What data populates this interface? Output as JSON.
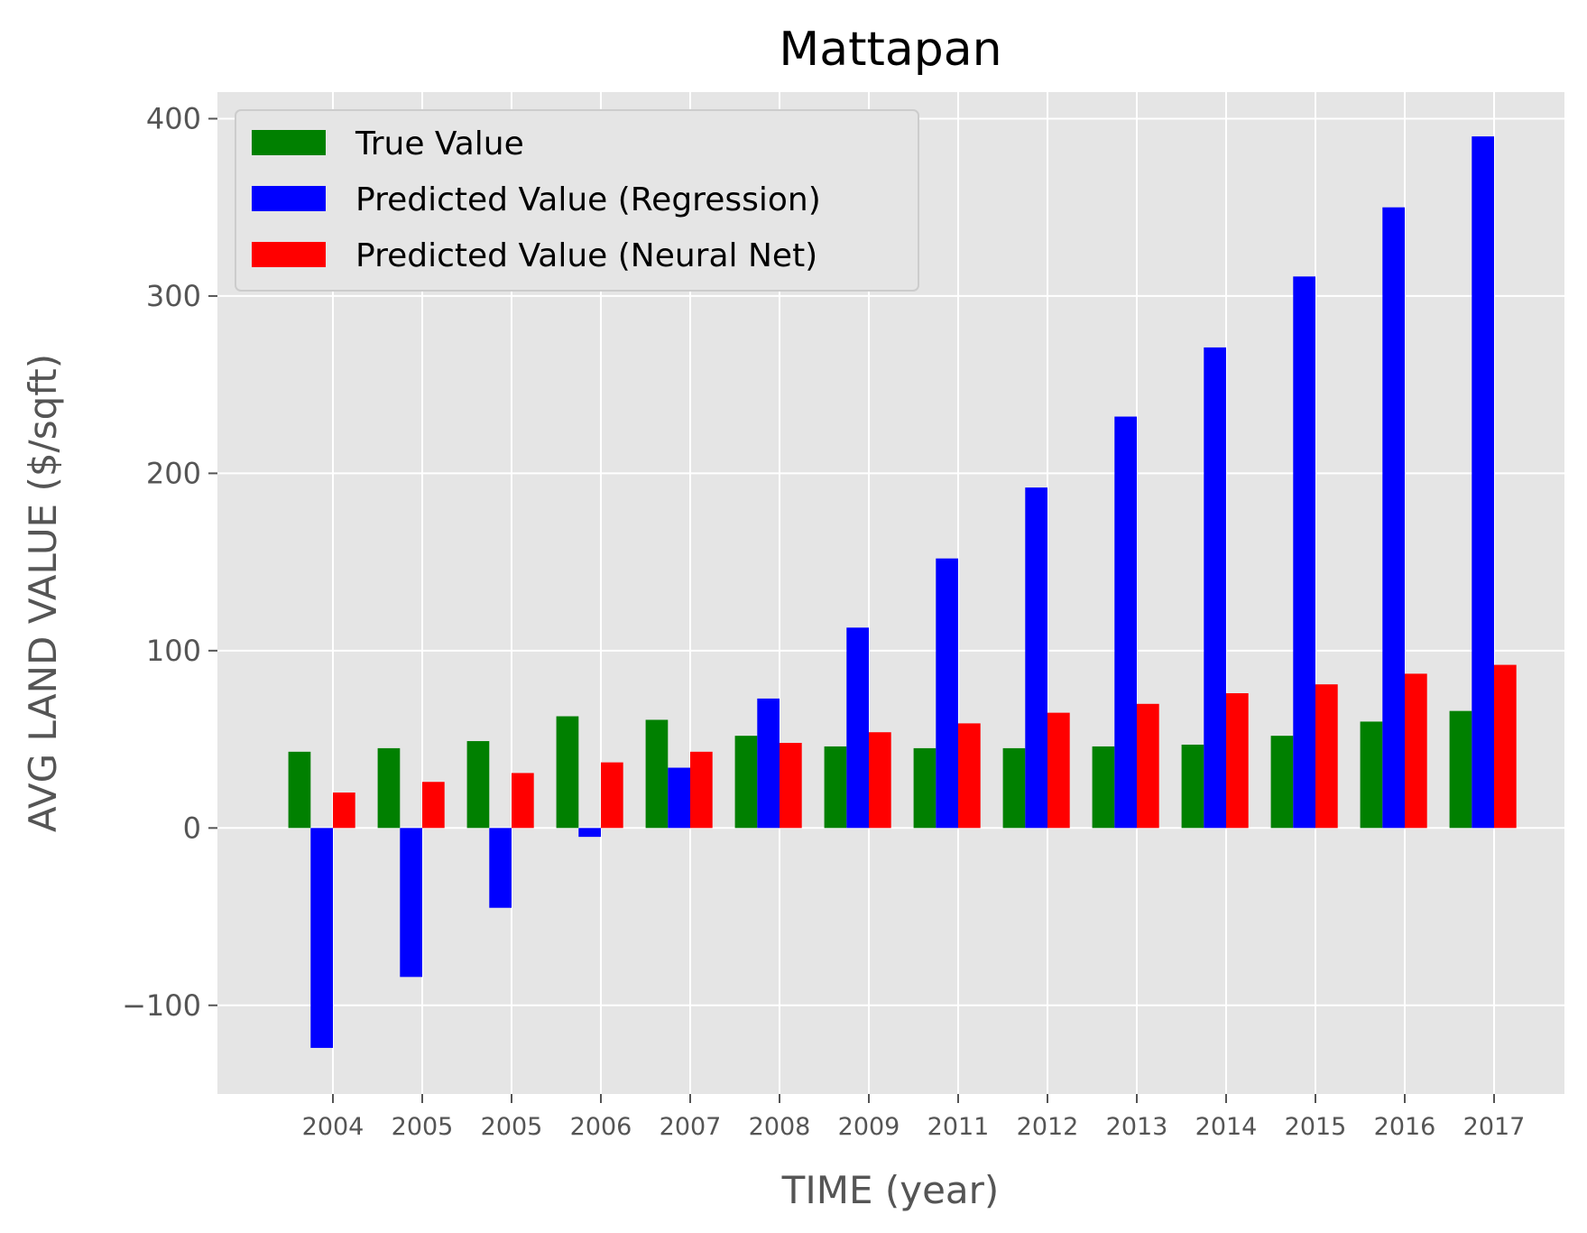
{
  "chart_data": {
    "type": "bar",
    "title": "Mattapan",
    "xlabel": "TIME (year)",
    "ylabel": "AVG LAND VALUE ($/sqft)",
    "categories": [
      "2004",
      "2005",
      "2005",
      "2006",
      "2007",
      "2008",
      "2009",
      "2011",
      "2012",
      "2013",
      "2014",
      "2015",
      "2016",
      "2017"
    ],
    "ylim": [
      -150,
      415
    ],
    "yticks": [
      -100,
      0,
      100,
      200,
      300,
      400
    ],
    "ytick_labels": [
      "−100",
      "0",
      "100",
      "200",
      "300",
      "400"
    ],
    "grid": true,
    "legend_position": "top-left",
    "series": [
      {
        "name": "True Value",
        "color": "#008000",
        "values": [
          43,
          45,
          49,
          63,
          61,
          52,
          46,
          45,
          45,
          46,
          47,
          52,
          60,
          66
        ]
      },
      {
        "name": "Predicted Value (Regression)",
        "color": "#0000ff",
        "values": [
          -124,
          -84,
          -45,
          -5,
          34,
          73,
          113,
          152,
          192,
          232,
          271,
          311,
          350,
          390
        ]
      },
      {
        "name": "Predicted Value (Neural Net)",
        "color": "#ff0000",
        "values": [
          20,
          26,
          31,
          37,
          43,
          48,
          54,
          59,
          65,
          70,
          76,
          81,
          87,
          92
        ]
      }
    ]
  }
}
